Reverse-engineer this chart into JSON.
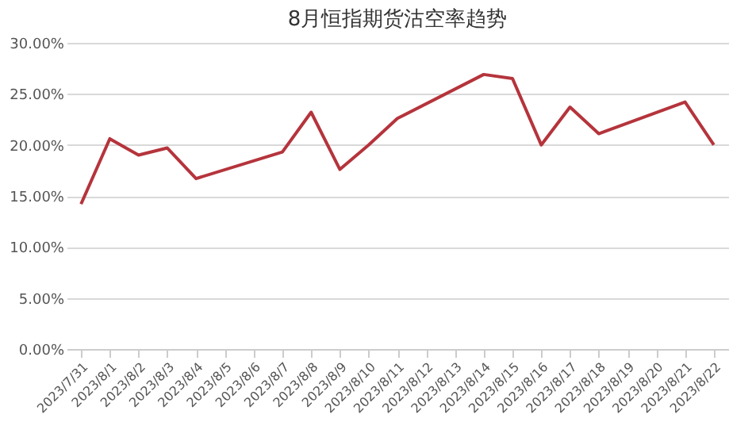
{
  "chart_data": {
    "type": "line",
    "title": "8月恒指期货沽空率趋势",
    "categories": [
      "2023/7/31",
      "2023/8/1",
      "2023/8/2",
      "2023/8/3",
      "2023/8/4",
      "2023/8/5",
      "2023/8/6",
      "2023/8/7",
      "2023/8/8",
      "2023/8/9",
      "2023/8/10",
      "2023/8/11",
      "2023/8/12",
      "2023/8/13",
      "2023/8/14",
      "2023/8/15",
      "2023/8/16",
      "2023/8/17",
      "2023/8/18",
      "2023/8/19",
      "2023/8/20",
      "2023/8/21",
      "2023/8/22"
    ],
    "series": [
      {
        "color": "#b5343c",
        "values": [
          14.2,
          20.6,
          19.0,
          19.7,
          16.7,
          null,
          null,
          19.3,
          23.2,
          17.6,
          20.0,
          22.6,
          null,
          null,
          26.9,
          26.5,
          20.0,
          23.7,
          21.1,
          null,
          null,
          24.2,
          20.0
        ]
      }
    ],
    "ylim": [
      0,
      30
    ],
    "yticks": [
      {
        "value": 0,
        "label": "0.00%"
      },
      {
        "value": 5,
        "label": "5.00%"
      },
      {
        "value": 10,
        "label": "10.00%"
      },
      {
        "value": 15,
        "label": "15.00%"
      },
      {
        "value": 20,
        "label": "20.00%"
      },
      {
        "value": 25,
        "label": "25.00%"
      },
      {
        "value": 30,
        "label": "30.00%"
      }
    ],
    "grid": "y",
    "legend": false,
    "marker": "none",
    "line_style": "solid"
  }
}
